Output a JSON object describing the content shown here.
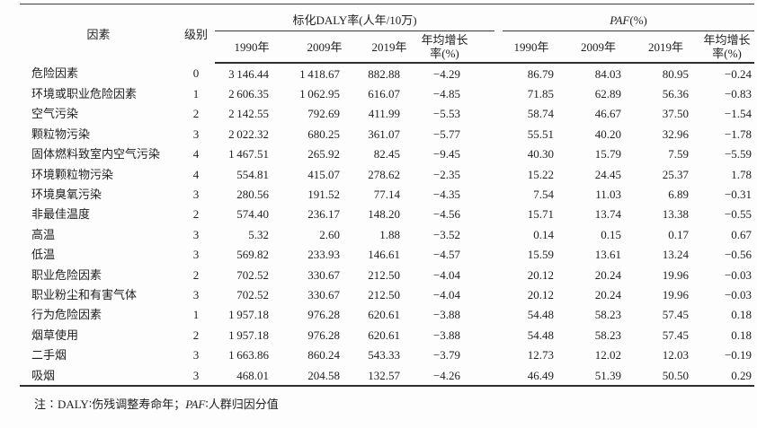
{
  "table": {
    "headers": {
      "factor": "因素",
      "level": "级别",
      "daly_group": "标化DALY率(人年/10万)",
      "paf_italic": "PAF",
      "paf_suffix": "(%)",
      "years": [
        "1990年",
        "2009年",
        "2019年"
      ],
      "growth_l1": "年均增长",
      "growth_l2": "率(%)"
    },
    "rows": [
      {
        "factor": "危险因素",
        "level": "0",
        "daly": [
          "3 146.44",
          "1 418.67",
          "882.88",
          "−4.29"
        ],
        "paf": [
          "86.79",
          "84.03",
          "80.95",
          "−0.24"
        ]
      },
      {
        "factor": "环境或职业危险因素",
        "level": "1",
        "daly": [
          "2 606.35",
          "1 062.95",
          "616.07",
          "−4.85"
        ],
        "paf": [
          "71.85",
          "62.89",
          "56.36",
          "−0.83"
        ]
      },
      {
        "factor": "空气污染",
        "level": "2",
        "daly": [
          "2 142.55",
          "792.69",
          "411.99",
          "−5.53"
        ],
        "paf": [
          "58.74",
          "46.67",
          "37.50",
          "−1.54"
        ]
      },
      {
        "factor": "颗粒物污染",
        "level": "3",
        "daly": [
          "2 022.32",
          "680.25",
          "361.07",
          "−5.77"
        ],
        "paf": [
          "55.51",
          "40.20",
          "32.96",
          "−1.78"
        ]
      },
      {
        "factor": "固体燃料致室内空气污染",
        "level": "4",
        "daly": [
          "1 467.51",
          "265.92",
          "82.45",
          "−9.45"
        ],
        "paf": [
          "40.30",
          "15.79",
          "7.59",
          "−5.59"
        ]
      },
      {
        "factor": "环境颗粒物污染",
        "level": "4",
        "daly": [
          "554.81",
          "415.07",
          "278.62",
          "−2.35"
        ],
        "paf": [
          "15.22",
          "24.45",
          "25.37",
          "1.78"
        ]
      },
      {
        "factor": "环境臭氧污染",
        "level": "3",
        "daly": [
          "280.56",
          "191.52",
          "77.14",
          "−4.35"
        ],
        "paf": [
          "7.54",
          "11.03",
          "6.89",
          "−0.31"
        ]
      },
      {
        "factor": "非最佳温度",
        "level": "2",
        "daly": [
          "574.40",
          "236.17",
          "148.20",
          "−4.56"
        ],
        "paf": [
          "15.71",
          "13.74",
          "13.38",
          "−0.55"
        ]
      },
      {
        "factor": "高温",
        "level": "3",
        "daly": [
          "5.32",
          "2.60",
          "1.88",
          "−3.52"
        ],
        "paf": [
          "0.14",
          "0.15",
          "0.17",
          "0.67"
        ]
      },
      {
        "factor": "低温",
        "level": "3",
        "daly": [
          "569.82",
          "233.93",
          "146.61",
          "−4.57"
        ],
        "paf": [
          "15.59",
          "13.61",
          "13.24",
          "−0.56"
        ]
      },
      {
        "factor": "职业危险因素",
        "level": "2",
        "daly": [
          "702.52",
          "330.67",
          "212.50",
          "−4.04"
        ],
        "paf": [
          "20.12",
          "20.24",
          "19.96",
          "−0.03"
        ]
      },
      {
        "factor": "职业粉尘和有害气体",
        "level": "3",
        "daly": [
          "702.52",
          "330.67",
          "212.50",
          "−4.04"
        ],
        "paf": [
          "20.12",
          "20.24",
          "19.96",
          "−0.03"
        ]
      },
      {
        "factor": "行为危险因素",
        "level": "1",
        "daly": [
          "1 957.18",
          "976.28",
          "620.61",
          "−3.88"
        ],
        "paf": [
          "54.48",
          "58.23",
          "57.45",
          "0.18"
        ]
      },
      {
        "factor": "烟草使用",
        "level": "2",
        "daly": [
          "1 957.18",
          "976.28",
          "620.61",
          "−3.88"
        ],
        "paf": [
          "54.48",
          "58.23",
          "57.45",
          "0.18"
        ]
      },
      {
        "factor": "二手烟",
        "level": "3",
        "daly": [
          "1 663.86",
          "860.24",
          "543.33",
          "−3.79"
        ],
        "paf": [
          "12.73",
          "12.02",
          "12.03",
          "−0.19"
        ]
      },
      {
        "factor": "吸烟",
        "level": "3",
        "daly": [
          "468.01",
          "204.58",
          "132.57",
          "−4.26"
        ],
        "paf": [
          "46.49",
          "51.39",
          "50.50",
          "0.29"
        ]
      }
    ],
    "note_prefix": "注∶DALY∶伤残调整寿命年；",
    "note_italic": "PAF",
    "note_suffix": "∶人群归因分值"
  }
}
